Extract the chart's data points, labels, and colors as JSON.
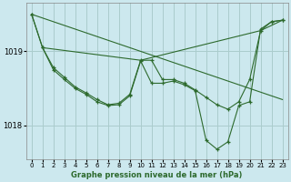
{
  "background_color": "#cce8ee",
  "grid_color": "#aacccc",
  "line_color": "#2d6a2d",
  "xlabel": "Graphe pression niveau de la mer (hPa)",
  "xlim": [
    -0.5,
    23.5
  ],
  "ylim": [
    1017.55,
    1019.65
  ],
  "yticks": [
    1018,
    1019
  ],
  "xticks": [
    0,
    1,
    2,
    3,
    4,
    5,
    6,
    7,
    8,
    9,
    10,
    11,
    12,
    13,
    14,
    15,
    16,
    17,
    18,
    19,
    20,
    21,
    22,
    23
  ],
  "series_main": {
    "x": [
      0,
      1,
      2,
      3,
      4,
      5,
      6,
      7,
      8,
      9,
      10,
      11,
      12,
      13,
      14,
      15,
      16,
      17,
      18,
      19,
      20,
      21,
      22,
      23
    ],
    "y": [
      1019.5,
      1019.05,
      1018.75,
      1018.62,
      1018.5,
      1018.42,
      1018.32,
      1018.27,
      1018.28,
      1018.4,
      1018.87,
      1018.57,
      1018.57,
      1018.6,
      1018.55,
      1018.47,
      1017.8,
      1017.68,
      1017.78,
      1018.27,
      1018.32,
      1019.3,
      1019.4,
      1019.42
    ]
  },
  "series_smooth": {
    "x": [
      0,
      1,
      2,
      3,
      4,
      5,
      6,
      7,
      8,
      9,
      10,
      11,
      12,
      13,
      14,
      15,
      16,
      17,
      18,
      19,
      20,
      21,
      22,
      23
    ],
    "y": [
      1019.5,
      1019.05,
      1018.78,
      1018.65,
      1018.52,
      1018.44,
      1018.35,
      1018.28,
      1018.3,
      1018.42,
      1018.88,
      1018.88,
      1018.62,
      1018.62,
      1018.57,
      1018.48,
      1018.38,
      1018.28,
      1018.22,
      1018.32,
      1018.62,
      1019.28,
      1019.4,
      1019.42
    ]
  },
  "series_trend": {
    "x": [
      0,
      23
    ],
    "y": [
      1019.5,
      1018.35
    ]
  },
  "series_trend2": {
    "x": [
      1,
      10,
      21,
      23
    ],
    "y": [
      1019.05,
      1018.88,
      1019.28,
      1019.42
    ]
  }
}
